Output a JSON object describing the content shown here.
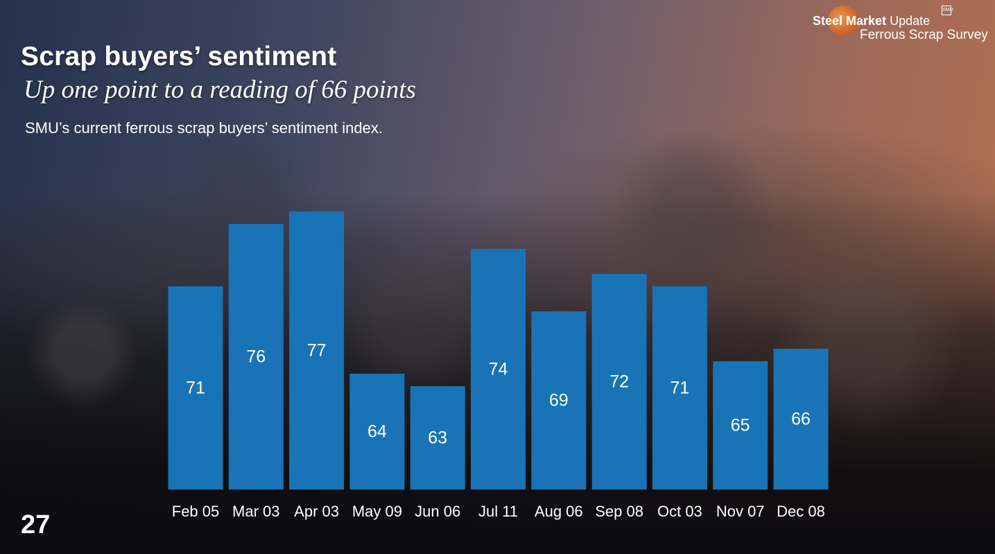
{
  "slide": {
    "title": "Scrap buyers’ sentiment",
    "subtitle": "Up one point to a reading of 66 points",
    "description": "SMU’s current ferrous scrap buyers’ sentiment index.",
    "page_number": "27"
  },
  "logo": {
    "brand_bold": "Steel Market",
    "brand_light": "Update",
    "survey": "Ferrous Scrap Survey",
    "badge": "SMU"
  },
  "colors": {
    "bar": "#1874b6",
    "text": "#ffffff"
  },
  "chart_data": {
    "type": "bar",
    "title": "",
    "xlabel": "",
    "ylabel": "",
    "categories": [
      "Feb 05",
      "Mar 03",
      "Apr 03",
      "May 09",
      "Jun 06",
      "Jul 11",
      "Aug 06",
      "Sep 08",
      "Oct 03",
      "Nov 07",
      "Dec 08"
    ],
    "values": [
      71,
      76,
      77,
      64,
      63,
      74,
      69,
      72,
      71,
      65,
      66
    ],
    "data_labels": true,
    "gridlines": false,
    "legend": "none"
  }
}
